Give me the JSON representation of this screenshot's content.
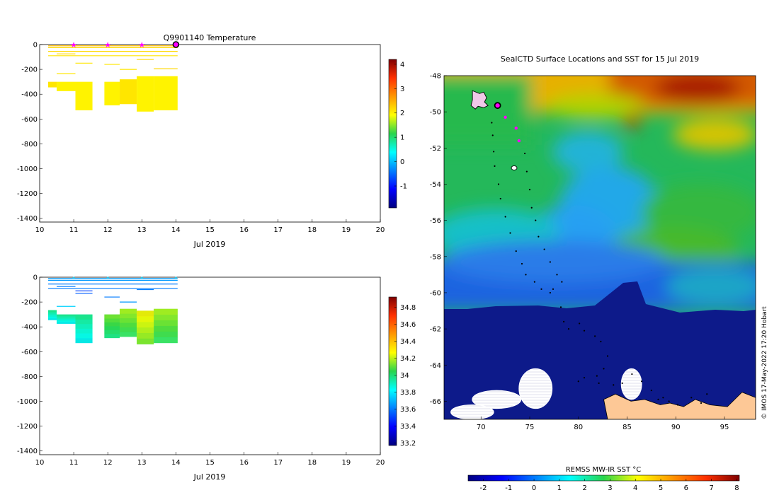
{
  "chart_data": [
    {
      "type": "heatmap",
      "title": "Q9901140  Temperature",
      "xlabel": "Jul 2019",
      "ylabel": "",
      "x_ticks": [
        10,
        11,
        12,
        13,
        14,
        15,
        16,
        17,
        18,
        19,
        20
      ],
      "y_ticks": [
        0,
        -200,
        -400,
        -600,
        -800,
        -1000,
        -1200,
        -1400
      ],
      "xlim": [
        10,
        20
      ],
      "ylim": [
        -1430,
        0
      ],
      "colorbar": {
        "ticks": [
          4,
          3,
          2,
          1,
          0,
          -1
        ],
        "range": [
          -1.9,
          4.2
        ]
      },
      "profiles": [
        {
          "x": [
            10.25,
            10.5
          ],
          "top": -300,
          "bottom": -345,
          "value": 2.1
        },
        {
          "x": [
            10.5,
            11.05
          ],
          "top": -300,
          "bottom": -375,
          "value": 2.0
        },
        {
          "x": [
            11.05,
            11.55
          ],
          "top": -300,
          "bottom": -530,
          "value": 2.0
        },
        {
          "x": [
            11.9,
            12.35
          ],
          "top": -300,
          "bottom": -490,
          "value": 2.0
        },
        {
          "x": [
            12.35,
            12.85
          ],
          "top": -280,
          "bottom": -480,
          "value": 2.1
        },
        {
          "x": [
            12.85,
            13.35
          ],
          "top": -255,
          "bottom": -540,
          "value": 2.0
        },
        {
          "x": [
            13.35,
            14.05
          ],
          "top": -255,
          "bottom": -530,
          "value": 2.0
        }
      ],
      "surface_lines": [
        {
          "x": [
            10.25,
            14.05
          ],
          "depth": -10,
          "value": 2.4
        },
        {
          "x": [
            10.25,
            14.05
          ],
          "depth": -25,
          "value": 2.2
        },
        {
          "x": [
            10.25,
            14.05
          ],
          "depth": -55,
          "value": 2.2
        },
        {
          "x": [
            10.25,
            14.05
          ],
          "depth": -90,
          "value": 2.1
        },
        {
          "x": [
            10.5,
            11.05
          ],
          "depth": -75,
          "value": 2.2
        },
        {
          "x": [
            11.05,
            11.55
          ],
          "depth": -150,
          "value": 2.1
        },
        {
          "x": [
            11.9,
            12.35
          ],
          "depth": -160,
          "value": 2.1
        },
        {
          "x": [
            12.35,
            12.85
          ],
          "depth": -200,
          "value": 2.1
        },
        {
          "x": [
            12.85,
            13.35
          ],
          "depth": -120,
          "value": 2.2
        },
        {
          "x": [
            10.5,
            11.05
          ],
          "depth": -235,
          "value": 2.1
        },
        {
          "x": [
            13.35,
            14.05
          ],
          "depth": -195,
          "value": 2.2
        }
      ],
      "markers": [
        {
          "x": 11,
          "y": 0,
          "kind": "magenta-star"
        },
        {
          "x": 12,
          "y": 0,
          "kind": "magenta-star"
        },
        {
          "x": 13,
          "y": 0,
          "kind": "magenta-star"
        },
        {
          "x": 14,
          "y": 0,
          "kind": "current-circle"
        }
      ]
    },
    {
      "type": "heatmap",
      "title": "",
      "xlabel": "Jul 2019",
      "ylabel": "",
      "x_ticks": [
        10,
        11,
        12,
        13,
        14,
        15,
        16,
        17,
        18,
        19,
        20
      ],
      "y_ticks": [
        0,
        -200,
        -400,
        -600,
        -800,
        -1000,
        -1200,
        -1400
      ],
      "xlim": [
        10,
        20
      ],
      "ylim": [
        -1430,
        0
      ],
      "colorbar": {
        "ticks": [
          34.8,
          34.6,
          34.4,
          34.2,
          34,
          33.8,
          33.6,
          33.4,
          33.2
        ],
        "range": [
          33.17,
          34.92
        ]
      },
      "profiles": [
        {
          "x": [
            10.25,
            10.5
          ],
          "top": -265,
          "bottom": -345,
          "value": 33.9
        },
        {
          "x": [
            10.5,
            11.05
          ],
          "top": -300,
          "bottom": -375,
          "value": 33.9
        },
        {
          "x": [
            11.05,
            11.55
          ],
          "top": -300,
          "bottom": -530,
          "value": 33.9
        },
        {
          "x": [
            11.9,
            12.35
          ],
          "top": -300,
          "bottom": -490,
          "value": 34.05
        },
        {
          "x": [
            12.35,
            12.85
          ],
          "top": -255,
          "bottom": -480,
          "value": 34.1
        },
        {
          "x": [
            12.85,
            13.35
          ],
          "top": -270,
          "bottom": -540,
          "value": 34.2
        },
        {
          "x": [
            13.35,
            14.05
          ],
          "top": -255,
          "bottom": -530,
          "value": 34.1
        }
      ],
      "surface_lines": [
        {
          "x": [
            10.25,
            14.05
          ],
          "depth": -10,
          "value": 33.65
        },
        {
          "x": [
            10.25,
            14.05
          ],
          "depth": -25,
          "value": 33.65
        },
        {
          "x": [
            10.25,
            14.05
          ],
          "depth": -55,
          "value": 33.6
        },
        {
          "x": [
            10.25,
            14.05
          ],
          "depth": -90,
          "value": 33.6
        },
        {
          "x": [
            10.5,
            11.05
          ],
          "depth": -75,
          "value": 33.6
        },
        {
          "x": [
            11.05,
            11.55
          ],
          "depth": -110,
          "value": 33.5
        },
        {
          "x": [
            11.05,
            11.55
          ],
          "depth": -130,
          "value": 33.55
        },
        {
          "x": [
            11.9,
            12.35
          ],
          "depth": -160,
          "value": 33.6
        },
        {
          "x": [
            12.35,
            12.85
          ],
          "depth": -200,
          "value": 33.65
        },
        {
          "x": [
            12.85,
            13.35
          ],
          "depth": -100,
          "value": 33.6
        },
        {
          "x": [
            10.5,
            11.05
          ],
          "depth": -235,
          "value": 33.75
        }
      ],
      "markers": [
        {
          "x": 11,
          "y": 0,
          "kind": "cyan-dot"
        },
        {
          "x": 12,
          "y": 0,
          "kind": "cyan-dot"
        },
        {
          "x": 13,
          "y": 0,
          "kind": "cyan-dot"
        },
        {
          "x": 14,
          "y": 0,
          "kind": "cyan-dot"
        }
      ]
    },
    {
      "type": "heatmap",
      "title": "SealCTD Surface Locations and SST for 15 Jul 2019",
      "xlabel": "",
      "ylabel": "",
      "x_ticks": [
        70,
        75,
        80,
        85,
        90,
        95
      ],
      "y_ticks": [
        -48,
        -50,
        -52,
        -54,
        -56,
        -58,
        -60,
        -62,
        -64,
        -66
      ],
      "xlim": [
        66.2,
        98.2
      ],
      "ylim": [
        -67.0,
        -48.0
      ],
      "colorbar": {
        "label": "REMSS MW-IR SST °C",
        "ticks": [
          -2,
          -1,
          0,
          1,
          2,
          3,
          4,
          5,
          6,
          7,
          8
        ],
        "range": [
          -2.6,
          8.1
        ]
      },
      "current_location": {
        "lon": 71.7,
        "lat": -49.65
      },
      "recent_locations": [
        {
          "lon": 72.5,
          "lat": -50.3
        },
        {
          "lon": 73.6,
          "lat": -50.9
        },
        {
          "lon": 73.9,
          "lat": -51.6
        }
      ],
      "track": [
        [
          71.1,
          -50.6
        ],
        [
          71.2,
          -51.3
        ],
        [
          71.3,
          -52.2
        ],
        [
          71.4,
          -53.0
        ],
        [
          71.8,
          -54.0
        ],
        [
          72.0,
          -54.8
        ],
        [
          72.5,
          -55.8
        ],
        [
          73.0,
          -56.7
        ],
        [
          73.6,
          -57.7
        ],
        [
          74.2,
          -58.4
        ],
        [
          74.6,
          -59.0
        ],
        [
          75.5,
          -59.4
        ],
        [
          76.2,
          -59.8
        ],
        [
          77.1,
          -60.0
        ],
        [
          77.4,
          -59.8
        ],
        [
          78.2,
          -60.8
        ],
        [
          78.5,
          -61.6
        ],
        [
          79.0,
          -62.0
        ],
        [
          80.1,
          -61.7
        ],
        [
          80.6,
          -62.1
        ],
        [
          81.7,
          -62.4
        ],
        [
          82.3,
          -62.7
        ],
        [
          83.0,
          -63.5
        ],
        [
          82.6,
          -64.2
        ],
        [
          81.9,
          -64.6
        ],
        [
          80.6,
          -64.7
        ],
        [
          80.0,
          -64.9
        ],
        [
          82.1,
          -65.0
        ],
        [
          83.6,
          -65.1
        ],
        [
          84.5,
          -65.0
        ],
        [
          85.5,
          -64.5
        ],
        [
          86.5,
          -64.9
        ],
        [
          87.5,
          -65.4
        ],
        [
          88.2,
          -65.9
        ],
        [
          88.7,
          -65.8
        ],
        [
          89.3,
          -66.0
        ],
        [
          90.2,
          -66.2
        ],
        [
          91.6,
          -65.8
        ],
        [
          92.6,
          -66.1
        ],
        [
          93.2,
          -65.6
        ],
        [
          74.5,
          -52.3
        ],
        [
          74.7,
          -53.3
        ],
        [
          75.0,
          -54.3
        ],
        [
          75.2,
          -55.3
        ],
        [
          75.6,
          -56.0
        ],
        [
          75.9,
          -56.9
        ],
        [
          76.5,
          -57.6
        ],
        [
          77.1,
          -58.3
        ],
        [
          77.8,
          -59.0
        ],
        [
          78.3,
          -59.4
        ]
      ],
      "sea_ice_patches": [
        {
          "lon": [
            69.1,
            74.1
          ],
          "lat": [
            -65.4,
            -66.4
          ]
        },
        {
          "lon": [
            73.9,
            77.3
          ],
          "lat": [
            -64.2,
            -66.4
          ]
        },
        {
          "lon": [
            66.9,
            71.3
          ],
          "lat": [
            -66.2,
            -67.0
          ]
        },
        {
          "lon": [
            84.4,
            86.5
          ],
          "lat": [
            -64.2,
            -65.9
          ]
        }
      ],
      "land": [
        [
          82.6,
          -65.9
        ],
        [
          83.8,
          -65.6
        ],
        [
          85.4,
          -66.0
        ],
        [
          86.8,
          -65.9
        ],
        [
          88.4,
          -66.2
        ],
        [
          89.4,
          -66.1
        ],
        [
          90.8,
          -66.3
        ],
        [
          92.0,
          -65.9
        ],
        [
          93.5,
          -66.2
        ],
        [
          95.3,
          -66.3
        ],
        [
          96.8,
          -65.5
        ],
        [
          98.2,
          -65.8
        ],
        [
          98.2,
          -67.0
        ],
        [
          83.0,
          -67.0
        ]
      ],
      "island_kerguelen": {
        "lon": 69.7,
        "lat": -49.3
      },
      "island_heard": {
        "lon": 73.4,
        "lat": -53.1
      }
    }
  ],
  "footer_credit": "© IMOS 17-May-2022 17:20 Hobart"
}
